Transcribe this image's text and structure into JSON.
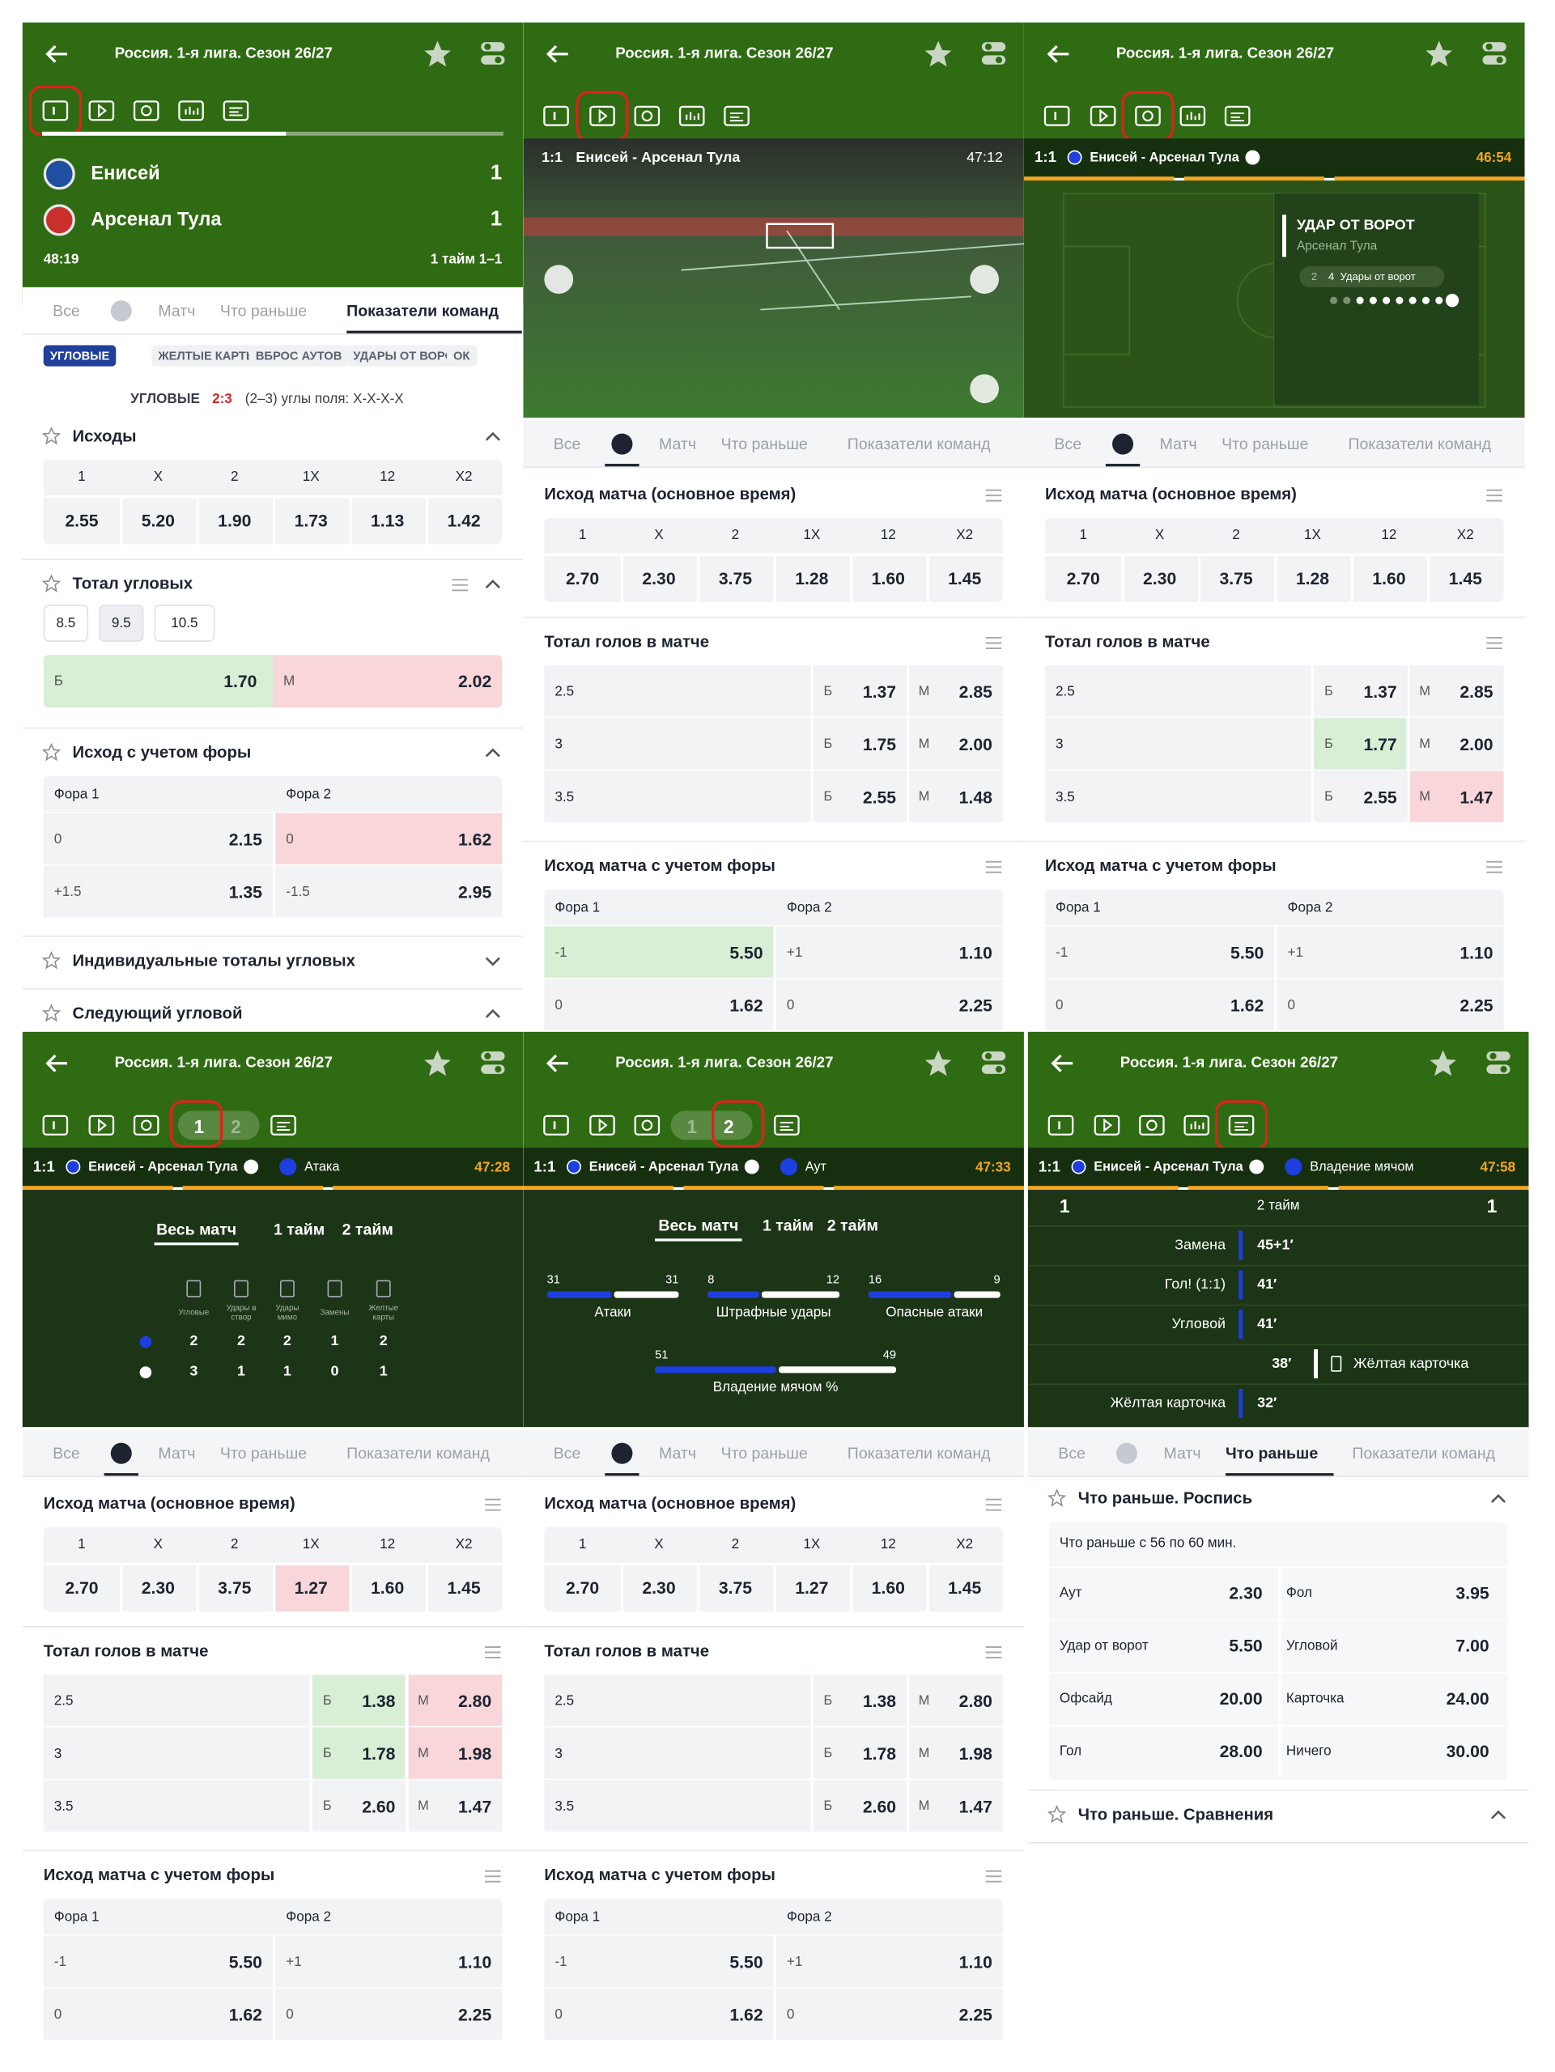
{
  "panels": [
    {
      "title": "Россия. 1-я лига. Сезон 26/27",
      "scoreboard": {
        "team1": "Енисей",
        "score1": "1",
        "team2": "Арсенал Тула",
        "score2": "1",
        "time": "48:19",
        "period": "1 тайм 1–1"
      },
      "nav": [
        "Все",
        "Матч",
        "Что раньше",
        "Показатели команд"
      ],
      "chips": [
        "УГЛОВЫЕ",
        "ЖЕЛТЫЕ КАРТЫ",
        "ВБРОС АУТОВ",
        "УДАРЫ ОТ ВОРОТ",
        "ОК"
      ],
      "info": {
        "label": "УГЛОВЫЕ",
        "score": "2:3",
        "text": "(2–3) углы поля: Х-Х-Х-Х"
      },
      "markets": [
        {
          "type": "outcomes",
          "title": "Исходы",
          "headers": [
            "1",
            "X",
            "2",
            "1X",
            "12",
            "X2"
          ],
          "values": [
            "2.55",
            "5.20",
            "1.90",
            "1.73",
            "1.13",
            "1.42"
          ]
        },
        {
          "type": "corner_total",
          "title": "Тотал угловых",
          "options": [
            "8.5",
            "9.5",
            "10.5"
          ],
          "over_label": "Б",
          "over": "1.70",
          "under_label": "М",
          "under": "2.02"
        },
        {
          "type": "handicap",
          "title": "Исход с учетом форы",
          "headers": [
            "Фора 1",
            "Фора 2"
          ],
          "rows": [
            [
              "0",
              "2.15",
              "0",
              "1.62"
            ],
            [
              "+1.5",
              "1.35",
              "-1.5",
              "2.95"
            ]
          ]
        },
        {
          "type": "collapsed",
          "title": "Индивидуальные тоталы угловых"
        },
        {
          "type": "collapsed",
          "title": "Следующий угловой"
        }
      ]
    },
    {
      "title": "Россия. 1-я лига. Сезон 26/27",
      "video": {
        "score": "1:1",
        "match": "Енисей - Арсенал Тула",
        "clock": "47:12"
      },
      "nav": [
        "Все",
        "Матч",
        "Что раньше",
        "Показатели команд"
      ],
      "markets": [
        {
          "type": "outcomes",
          "title": "Исход матча (основное время)",
          "headers": [
            "1",
            "X",
            "2",
            "1X",
            "12",
            "X2"
          ],
          "values": [
            "2.70",
            "2.30",
            "3.75",
            "1.28",
            "1.60",
            "1.45"
          ]
        },
        {
          "type": "totals",
          "title": "Тотал голов в матче",
          "over_label": "Б",
          "under_label": "М",
          "rows": [
            [
              "2.5",
              "1.37",
              "2.85"
            ],
            [
              "3",
              "1.75",
              "2.00"
            ],
            [
              "3.5",
              "2.55",
              "1.48"
            ]
          ]
        },
        {
          "type": "handicap",
          "title": "Исход матча с учетом форы",
          "headers": [
            "Фора 1",
            "Фора 2"
          ],
          "rows": [
            [
              "-1",
              "5.50",
              "+1",
              "1.10"
            ],
            [
              "0",
              "1.62",
              "0",
              "2.25"
            ]
          ]
        }
      ]
    },
    {
      "title": "Россия. 1-я лига. Сезон 26/27",
      "strip": {
        "score": "1:1",
        "match": "Енисей - Арсенал Тула",
        "clock": "46:54"
      },
      "field_card": {
        "title": "УДАР ОТ ВОРОТ",
        "team": "Арсенал Тула",
        "count": "2",
        "total": "4",
        "label": "Удары от ворот"
      },
      "nav": [
        "Все",
        "Матч",
        "Что раньше",
        "Показатели команд"
      ],
      "markets": [
        {
          "type": "outcomes",
          "title": "Исход матча (основное время)",
          "headers": [
            "1",
            "X",
            "2",
            "1X",
            "12",
            "X2"
          ],
          "values": [
            "2.70",
            "2.30",
            "3.75",
            "1.28",
            "1.60",
            "1.45"
          ]
        },
        {
          "type": "totals",
          "title": "Тотал голов в матче",
          "over_label": "Б",
          "under_label": "М",
          "rows": [
            [
              "2.5",
              "1.37",
              "2.85"
            ],
            [
              "3",
              "1.77",
              "2.00"
            ],
            [
              "3.5",
              "2.55",
              "1.47"
            ]
          ]
        },
        {
          "type": "handicap",
          "title": "Исход матча с учетом форы",
          "headers": [
            "Фора 1",
            "Фора 2"
          ],
          "rows": [
            [
              "-1",
              "5.50",
              "+1",
              "1.10"
            ],
            [
              "0",
              "1.62",
              "0",
              "2.25"
            ]
          ]
        }
      ]
    },
    {
      "title": "Россия. 1-я лига. Сезон 26/27",
      "period_tabs": [
        "1",
        "2"
      ],
      "strip": {
        "score": "1:1",
        "match": "Енисей - Арсенал Тула",
        "event": "Атака",
        "clock": "47:28"
      },
      "stats": {
        "periods": [
          "Весь матч",
          "1 тайм",
          "2 тайм"
        ],
        "labels": [
          "Угловые",
          "Удары в створ",
          "Удары мимо",
          "Замены",
          "Желтые карты"
        ],
        "team1": [
          "2",
          "2",
          "2",
          "1",
          "2"
        ],
        "team2": [
          "3",
          "1",
          "1",
          "0",
          "1"
        ]
      },
      "nav": [
        "Все",
        "Матч",
        "Что раньше",
        "Показатели команд"
      ],
      "markets": [
        {
          "type": "outcomes",
          "title": "Исход матча (основное время)",
          "headers": [
            "1",
            "X",
            "2",
            "1X",
            "12",
            "X2"
          ],
          "values": [
            "2.70",
            "2.30",
            "3.75",
            "1.27",
            "1.60",
            "1.45"
          ]
        },
        {
          "type": "totals",
          "title": "Тотал голов в матче",
          "over_label": "Б",
          "under_label": "М",
          "rows": [
            [
              "2.5",
              "1.38",
              "2.80"
            ],
            [
              "3",
              "1.78",
              "1.98"
            ],
            [
              "3.5",
              "2.60",
              "1.47"
            ]
          ]
        },
        {
          "type": "handicap",
          "title": "Исход матча с учетом форы",
          "headers": [
            "Фора 1",
            "Фора 2"
          ],
          "rows": [
            [
              "-1",
              "5.50",
              "+1",
              "1.10"
            ],
            [
              "0",
              "1.62",
              "0",
              "2.25"
            ]
          ]
        }
      ]
    },
    {
      "title": "Россия. 1-я лига. Сезон 26/27",
      "period_tabs": [
        "1",
        "2"
      ],
      "strip": {
        "score": "1:1",
        "match": "Енисей - Арсенал Тула",
        "event": "Аут",
        "clock": "47:33"
      },
      "bars": {
        "periods": [
          "Весь матч",
          "1 тайм",
          "2 тайм"
        ],
        "items": [
          {
            "label": "Атаки",
            "team1": 31,
            "team2": 31
          },
          {
            "label": "Штрафные удары",
            "team1": 8,
            "team2": 12
          },
          {
            "label": "Опасные атаки",
            "team1": 16,
            "team2": 9
          },
          {
            "label": "Владение мячом %",
            "team1": 51,
            "team2": 49
          }
        ]
      },
      "nav": [
        "Все",
        "Матч",
        "Что раньше",
        "Показатели команд"
      ],
      "markets": [
        {
          "type": "outcomes",
          "title": "Исход матча (основное время)",
          "headers": [
            "1",
            "X",
            "2",
            "1X",
            "12",
            "X2"
          ],
          "values": [
            "2.70",
            "2.30",
            "3.75",
            "1.27",
            "1.60",
            "1.45"
          ]
        },
        {
          "type": "totals",
          "title": "Тотал голов в матче",
          "over_label": "Б",
          "under_label": "М",
          "rows": [
            [
              "2.5",
              "1.38",
              "2.80"
            ],
            [
              "3",
              "1.78",
              "1.98"
            ],
            [
              "3.5",
              "2.60",
              "1.47"
            ]
          ]
        },
        {
          "type": "handicap",
          "title": "Исход матча с учетом форы",
          "headers": [
            "Фора 1",
            "Фора 2"
          ],
          "rows": [
            [
              "-1",
              "5.50",
              "+1",
              "1.10"
            ],
            [
              "0",
              "1.62",
              "0",
              "2.25"
            ]
          ]
        }
      ]
    },
    {
      "title": "Россия. 1-я лига. Сезон 26/27",
      "strip": {
        "score": "1:1",
        "match": "Енисей - Арсенал Тула",
        "event": "Владение мячом",
        "clock": "47:58"
      },
      "timeline": {
        "score1": "1",
        "period": "2 тайм",
        "score2": "1",
        "events": [
          {
            "minute": "45+1′",
            "home": "Замена"
          },
          {
            "minute": "41′",
            "home": "Гол! (1:1)"
          },
          {
            "minute": "41′",
            "home": "Угловой"
          },
          {
            "minute": "38′",
            "away": "Жёлтая карточка"
          },
          {
            "minute": "32′",
            "home": "Жёлтая карточка"
          }
        ]
      },
      "nav": [
        "Все",
        "Матч",
        "Что раньше",
        "Показатели команд"
      ],
      "markets": [
        {
          "type": "first_event",
          "title": "Что раньше. Роспись",
          "subtitle": "Что раньше с 56 по 60 мин.",
          "rows": [
            [
              "Аут",
              "2.30",
              "Фол",
              "3.95"
            ],
            [
              "Удар от ворот",
              "5.50",
              "Угловой",
              "7.00"
            ],
            [
              "Офсайд",
              "20.00",
              "Карточка",
              "24.00"
            ],
            [
              "Гол",
              "28.00",
              "Ничего",
              "30.00"
            ]
          ]
        },
        {
          "type": "collapsed",
          "title": "Что раньше. Сравнения"
        }
      ]
    }
  ]
}
